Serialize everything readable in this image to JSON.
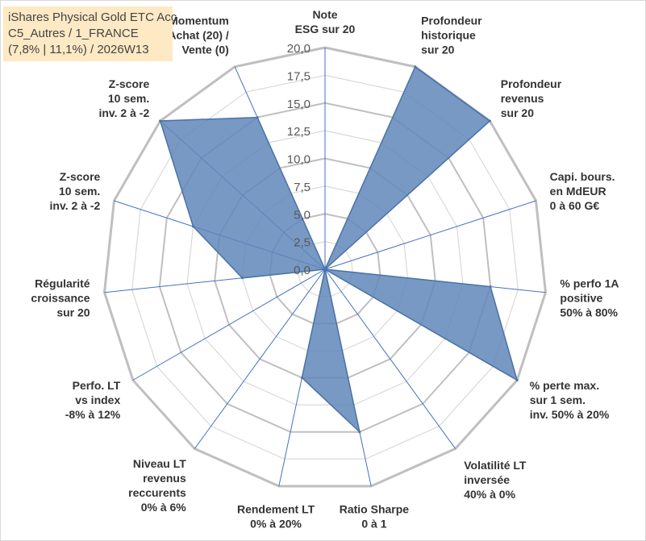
{
  "chart_data": {
    "type": "radar",
    "title": "iShares Physical Gold ETC Acc",
    "subtitle_lines": [
      "C5_Autres / 1_FRANCE",
      "(7,8% | 11,1%) / 2026W13"
    ],
    "rlim": [
      0,
      20
    ],
    "rticks": [
      "0,0",
      "2,5",
      "5,0",
      "7,5",
      "10,0",
      "12,5",
      "15,0",
      "17,5",
      "20,0"
    ],
    "axes": [
      {
        "label": [
          "Note",
          "ESG sur 20"
        ],
        "value": 0
      },
      {
        "label": [
          "Profondeur",
          "historique",
          "sur 20"
        ],
        "value": 20
      },
      {
        "label": [
          "Profondeur",
          "revenus",
          "sur 20"
        ],
        "value": 20
      },
      {
        "label": [
          "Capi. bours.",
          "en MdEUR",
          "0 à 60 G€"
        ],
        "value": 0
      },
      {
        "label": [
          "% perfo 1A",
          "positive",
          "50% à 80%"
        ],
        "value": 15
      },
      {
        "label": [
          "% perte max.",
          "sur 1 sem.",
          "inv. 50% à 20%"
        ],
        "value": 20
      },
      {
        "label": [
          "Volatilité LT",
          "inversée",
          "40% à 0%"
        ],
        "value": 0
      },
      {
        "label": [
          "Ratio Sharpe",
          "0 à 1"
        ],
        "value": 15
      },
      {
        "label": [
          "Rendement LT",
          "0% à 20%"
        ],
        "value": 10
      },
      {
        "label": [
          "Niveau LT",
          "revenus",
          "reccurents",
          "0% à 6%"
        ],
        "value": 0
      },
      {
        "label": [
          "Perfo. LT",
          "vs index",
          "-8% à 12%"
        ],
        "value": 0
      },
      {
        "label": [
          "Régularité",
          "croissance",
          "sur 20"
        ],
        "value": 7.5
      },
      {
        "label": [
          "Z-score",
          "10 sem.",
          "inv. 2 à -2"
        ],
        "value": 12.5
      },
      {
        "label": [
          "Z-score",
          "10 sem.",
          "inv. 2 à -2"
        ],
        "value": 20
      },
      {
        "label": [
          "Momentum",
          "Achat (20) /",
          "Vente (0)"
        ],
        "value": 15
      }
    ],
    "colors": {
      "fill": "#5f87ba",
      "stroke": "#4a72a6",
      "grid_outer": "#bfbfbf",
      "grid_inner": "#d9d9d9",
      "spoke": "#4472c4",
      "label": "#333333",
      "tick": "#595959"
    }
  }
}
